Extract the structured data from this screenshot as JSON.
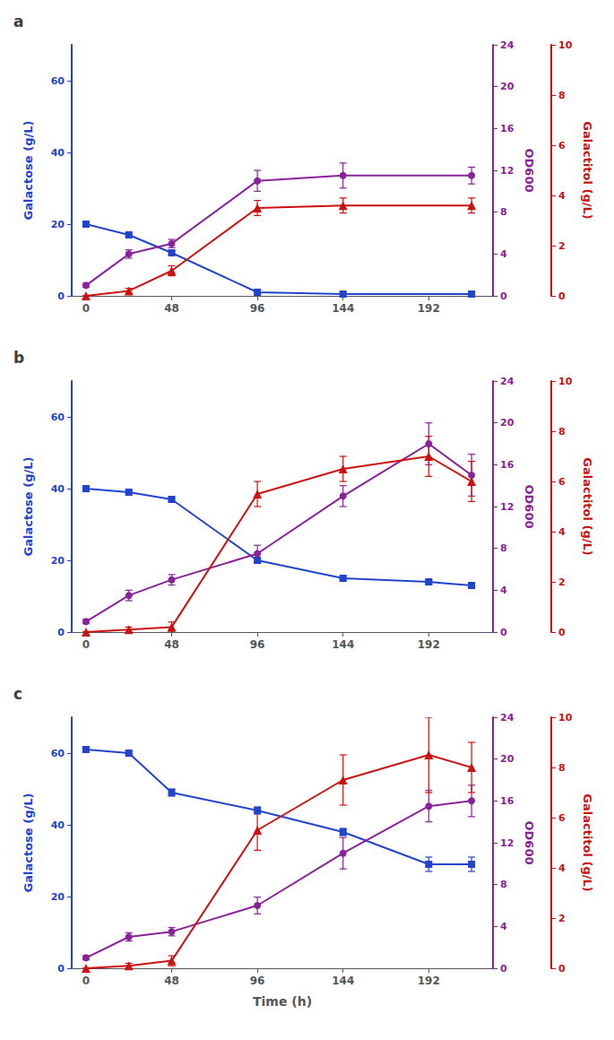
{
  "chart_data": [
    {
      "type": "line",
      "title": "a",
      "x": [
        0,
        24,
        48,
        96,
        144,
        216
      ],
      "xlim": [
        -8,
        228
      ],
      "xticks": [
        0,
        48,
        96,
        144,
        192
      ],
      "ylabel": "Galactose (g/L)",
      "ylim": [
        0,
        70
      ],
      "yticks": [
        0,
        20,
        40,
        60
      ],
      "y2label": "OD600",
      "y2lim": [
        0,
        24
      ],
      "y2ticks": [
        0,
        4,
        8,
        12,
        16,
        20,
        24
      ],
      "y3label": "Galactitol (g/L)",
      "y3lim": [
        0,
        10
      ],
      "y3ticks": [
        0,
        2,
        4,
        6,
        8,
        10
      ],
      "grid": false,
      "series": [
        {
          "axis": "y",
          "color": "#2244cc",
          "marker": "square",
          "values": [
            20,
            17,
            12,
            1,
            0.5,
            0.5
          ],
          "errors": [
            0.4,
            0.4,
            0.5,
            0.2,
            0.1,
            0.1
          ]
        },
        {
          "axis": "y2",
          "color": "#882299",
          "marker": "circle",
          "values": [
            1.0,
            4.0,
            5.0,
            11.0,
            11.5,
            11.5
          ],
          "errors": [
            0.2,
            0.4,
            0.4,
            1.0,
            1.2,
            0.8
          ]
        },
        {
          "axis": "y3",
          "color": "#cc1111",
          "marker": "triangle",
          "values": [
            0.0,
            0.2,
            1.0,
            3.5,
            3.6,
            3.6
          ],
          "errors": [
            0.0,
            0.1,
            0.2,
            0.3,
            0.3,
            0.3
          ]
        }
      ]
    },
    {
      "type": "line",
      "title": "b",
      "x": [
        0,
        24,
        48,
        96,
        144,
        192,
        216
      ],
      "xlim": [
        -8,
        228
      ],
      "xticks": [
        0,
        48,
        96,
        144,
        192
      ],
      "ylabel": "Galactose (g/L)",
      "ylim": [
        0,
        70
      ],
      "yticks": [
        0,
        20,
        40,
        60
      ],
      "y2label": "OD600",
      "y2lim": [
        0,
        24
      ],
      "y2ticks": [
        0,
        4,
        8,
        12,
        16,
        20,
        24
      ],
      "y3label": "Galactitol (g/L)",
      "y3lim": [
        0,
        10
      ],
      "y3ticks": [
        0,
        2,
        4,
        6,
        8,
        10
      ],
      "grid": false,
      "series": [
        {
          "axis": "y",
          "color": "#2244cc",
          "marker": "square",
          "values": [
            40,
            39,
            37,
            20,
            15,
            14,
            13
          ],
          "errors": [
            0.5,
            0.5,
            0.5,
            0.5,
            0.5,
            0.5,
            0.5
          ]
        },
        {
          "axis": "y2",
          "color": "#882299",
          "marker": "circle",
          "values": [
            1.0,
            3.5,
            5.0,
            7.5,
            13.0,
            18.0,
            15.0
          ],
          "errors": [
            0.2,
            0.5,
            0.5,
            0.8,
            1.0,
            2.0,
            2.0
          ]
        },
        {
          "axis": "y3",
          "color": "#cc1111",
          "marker": "triangle",
          "values": [
            0.0,
            0.1,
            0.2,
            5.5,
            6.5,
            7.0,
            6.0
          ],
          "errors": [
            0.0,
            0.1,
            0.2,
            0.5,
            0.5,
            0.8,
            0.8
          ]
        }
      ]
    },
    {
      "type": "line",
      "title": "c",
      "x": [
        0,
        24,
        48,
        96,
        144,
        192,
        216
      ],
      "xlim": [
        -8,
        228
      ],
      "xticks": [
        0,
        48,
        96,
        144,
        192
      ],
      "xlabel": "Time (h)",
      "ylabel": "Galactose (g/L)",
      "ylim": [
        0,
        70
      ],
      "yticks": [
        0,
        20,
        40,
        60
      ],
      "y2label": "OD600",
      "y2lim": [
        0,
        24
      ],
      "y2ticks": [
        0,
        4,
        8,
        12,
        16,
        20,
        24
      ],
      "y3label": "Galactitol (g/L)",
      "y3lim": [
        0,
        10
      ],
      "y3ticks": [
        0,
        2,
        4,
        6,
        8,
        10
      ],
      "grid": false,
      "series": [
        {
          "axis": "y",
          "color": "#2244cc",
          "marker": "square",
          "values": [
            61,
            60,
            49,
            44,
            38,
            29,
            29
          ],
          "errors": [
            0.5,
            0.5,
            1.0,
            1.0,
            1.0,
            2.0,
            2.0
          ]
        },
        {
          "axis": "y2",
          "color": "#882299",
          "marker": "circle",
          "values": [
            1.0,
            3.0,
            3.5,
            6.0,
            11.0,
            15.5,
            16.0
          ],
          "errors": [
            0.2,
            0.4,
            0.4,
            0.8,
            1.5,
            1.5,
            1.5
          ]
        },
        {
          "axis": "y3",
          "color": "#cc1111",
          "marker": "triangle",
          "values": [
            0.0,
            0.1,
            0.3,
            5.5,
            7.5,
            8.5,
            8.0
          ],
          "errors": [
            0.0,
            0.1,
            0.2,
            0.8,
            1.0,
            1.5,
            1.0
          ]
        }
      ]
    }
  ]
}
